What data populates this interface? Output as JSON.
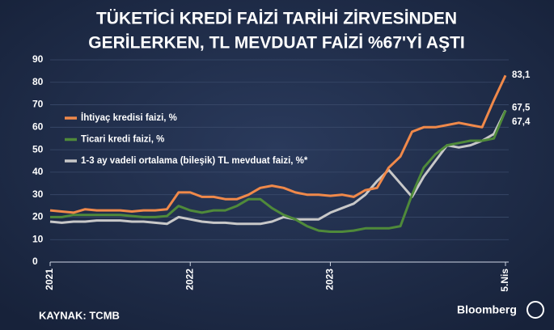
{
  "chart_data": {
    "type": "line",
    "title_lines": [
      "TÜKETİCİ KREDİ FAİZİ TARİHİ ZİRVESİNDEN",
      "GERİLERKEN, TL MEVDUAT FAİZİ %67'Yİ AŞTI"
    ],
    "source": "KAYNAK: TCMB",
    "brand": "Bloomberg",
    "categories": [
      "2021",
      null,
      null,
      null,
      null,
      null,
      null,
      null,
      null,
      null,
      null,
      null,
      "2022",
      null,
      null,
      null,
      null,
      null,
      null,
      null,
      null,
      null,
      null,
      null,
      "2023",
      null,
      null,
      null,
      null,
      null,
      null,
      null,
      null,
      null,
      null,
      null,
      null,
      null,
      null,
      "5.Nis"
    ],
    "ylim": [
      0,
      90
    ],
    "yticks": [
      0,
      10,
      20,
      30,
      40,
      50,
      60,
      70,
      80,
      90
    ],
    "grid": true,
    "legend": "upper-left",
    "series": [
      {
        "name": "İhtiyaç kredisi faizi, %",
        "color": "#f0894a",
        "values": [
          23,
          22.5,
          22,
          23.5,
          23,
          23,
          23,
          22.5,
          23,
          23,
          23.5,
          31,
          31,
          29,
          29,
          28,
          28,
          30,
          33,
          34,
          33,
          31,
          30,
          30,
          29.5,
          30,
          29,
          32,
          33,
          42,
          47,
          58,
          60,
          60,
          61,
          62,
          61,
          60,
          72,
          83.1
        ],
        "value_labels": [
          null,
          null,
          null,
          null,
          null,
          null,
          null,
          null,
          null,
          null,
          null,
          null,
          null,
          null,
          null,
          null,
          null,
          null,
          null,
          null,
          null,
          null,
          null,
          null,
          null,
          null,
          null,
          null,
          null,
          null,
          null,
          null,
          null,
          null,
          null,
          null,
          null,
          null,
          null,
          "83,1"
        ]
      },
      {
        "name": "Ticari kredi faizi, %",
        "color": "#4f8a3a",
        "values": [
          20,
          20,
          21,
          21,
          21,
          21,
          21,
          20.5,
          20,
          20,
          20.5,
          25,
          23,
          22,
          23,
          23,
          25,
          28,
          28,
          24,
          21,
          19,
          16,
          14,
          13.5,
          13.5,
          14,
          15,
          15,
          15,
          16,
          30,
          42,
          48,
          52,
          53,
          54,
          54,
          55,
          67.4
        ],
        "value_labels": [
          null,
          null,
          null,
          null,
          null,
          null,
          null,
          null,
          null,
          null,
          null,
          null,
          null,
          null,
          null,
          null,
          null,
          null,
          null,
          null,
          null,
          null,
          null,
          null,
          null,
          null,
          null,
          null,
          null,
          null,
          null,
          null,
          null,
          null,
          null,
          null,
          null,
          null,
          null,
          "67,4"
        ]
      },
      {
        "name": "1-3 ay vadeli ortalama (bileşik) TL mevduat faizi, %*",
        "color": "#c8c8c8",
        "values": [
          18,
          17.5,
          18,
          18,
          18.5,
          18.5,
          18.5,
          18,
          18,
          17.5,
          17,
          20,
          19,
          18,
          17.5,
          17.5,
          17,
          17,
          17,
          18,
          20,
          19,
          19,
          19,
          22,
          24,
          26,
          30,
          36,
          41,
          35,
          29,
          38,
          45,
          52,
          51,
          52,
          54,
          57,
          67.5
        ],
        "value_labels": [
          null,
          null,
          null,
          null,
          null,
          null,
          null,
          null,
          null,
          null,
          null,
          null,
          null,
          null,
          null,
          null,
          null,
          null,
          null,
          null,
          null,
          null,
          null,
          null,
          null,
          null,
          null,
          null,
          null,
          null,
          null,
          null,
          null,
          null,
          null,
          null,
          null,
          null,
          null,
          "67,5"
        ]
      }
    ]
  }
}
